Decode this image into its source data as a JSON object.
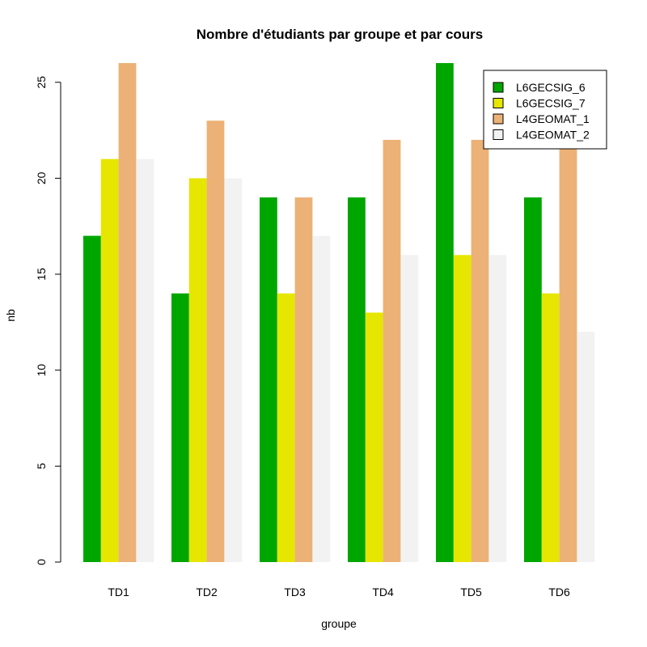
{
  "chart_data": {
    "type": "bar",
    "title": "Nombre d'étudiants par groupe et par cours",
    "xlabel": "groupe",
    "ylabel": "nb",
    "categories": [
      "TD1",
      "TD2",
      "TD3",
      "TD4",
      "TD5",
      "TD6"
    ],
    "series": [
      {
        "name": "L6GECSIG_6",
        "color": "#00A600",
        "values": [
          17,
          14,
          19,
          19,
          26,
          19
        ]
      },
      {
        "name": "L6GECSIG_7",
        "color": "#E6E600",
        "values": [
          21,
          20,
          14,
          13,
          16,
          14
        ]
      },
      {
        "name": "L4GEOMAT_1",
        "color": "#ECB176",
        "values": [
          26,
          23,
          19,
          22,
          22,
          22
        ]
      },
      {
        "name": "L4GEOMAT_2",
        "color": "#F2F2F2",
        "values": [
          21,
          20,
          17,
          16,
          16,
          12
        ]
      }
    ],
    "ylim": [
      0,
      26
    ],
    "yticks": [
      0,
      5,
      10,
      15,
      20,
      25
    ],
    "grid": false,
    "legend_position": "top-right"
  }
}
